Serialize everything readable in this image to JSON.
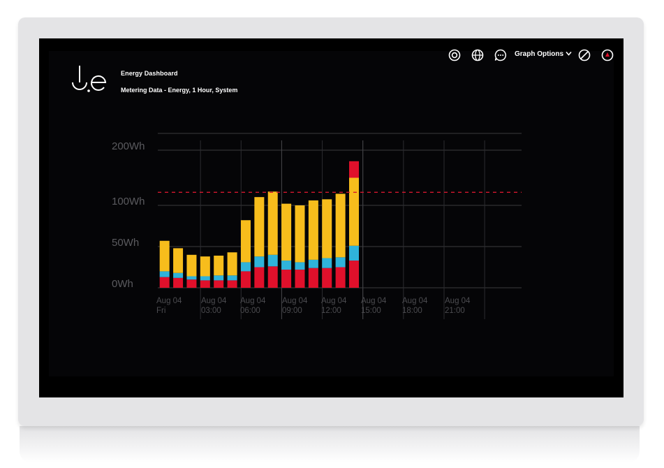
{
  "header": {
    "title": "Energy Dashboard",
    "subtitle": "Metering Data - Energy, 1 Hour, System"
  },
  "toolbar": {
    "icons": [
      "target-icon",
      "globe-icon",
      "chat-bubble-icon",
      "no-entry-icon",
      "power-icon"
    ],
    "graph_options_label": "Graph Options"
  },
  "colors": {
    "background": "#050507",
    "series_bottom": "#e0102b",
    "series_middle": "#2fb3da",
    "series_top": "#f7bd1c",
    "threshold": "#d5172e",
    "grid": "#3a3a3e"
  },
  "chart_data": {
    "type": "bar",
    "stacked": true,
    "y_axis": {
      "ticks": [
        {
          "value": 0,
          "label": "0Wh"
        },
        {
          "value": 50,
          "label": "50Wh"
        },
        {
          "value": 100,
          "label": "100Wh"
        },
        {
          "value": 200,
          "label": "200Wh"
        }
      ],
      "scale": "non-linear"
    },
    "x_axis": {
      "ticks": [
        {
          "hour": 0,
          "line1": "Aug 04",
          "line2": "Fri"
        },
        {
          "hour": 3,
          "line1": "Aug 04",
          "line2": "03:00"
        },
        {
          "hour": 6,
          "line1": "Aug 04",
          "line2": "06:00"
        },
        {
          "hour": 9,
          "line1": "Aug 04",
          "line2": "09:00"
        },
        {
          "hour": 12,
          "line1": "Aug 04",
          "line2": "12:00"
        },
        {
          "hour": 15,
          "line1": "Aug 04",
          "line2": "15:00"
        },
        {
          "hour": 18,
          "line1": "Aug 04",
          "line2": "18:00"
        },
        {
          "hour": 21,
          "line1": "Aug 04",
          "line2": "21:00"
        }
      ]
    },
    "threshold_value": 130,
    "categories": [
      "00:00",
      "01:00",
      "02:00",
      "03:00",
      "04:00",
      "05:00",
      "06:00",
      "07:00",
      "08:00",
      "09:00",
      "10:00",
      "11:00",
      "12:00",
      "13:00",
      "14:00"
    ],
    "series": [
      {
        "values": [
          13,
          12,
          10,
          9,
          9,
          9,
          20,
          25,
          26,
          22,
          22,
          24,
          24,
          25,
          33
        ]
      },
      {
        "values": [
          20,
          18,
          14,
          14,
          15,
          15,
          31,
          38,
          40,
          33,
          31,
          34,
          36,
          37,
          51
        ]
      },
      {
        "values": [
          57,
          48,
          40,
          38,
          39,
          43,
          82,
          115,
          125,
          103,
          100,
          109,
          111,
          121,
          150
        ]
      },
      {
        "values": [
          57,
          48,
          40,
          38,
          39,
          43,
          82,
          115,
          125,
          103,
          100,
          109,
          111,
          121,
          180
        ]
      }
    ]
  }
}
